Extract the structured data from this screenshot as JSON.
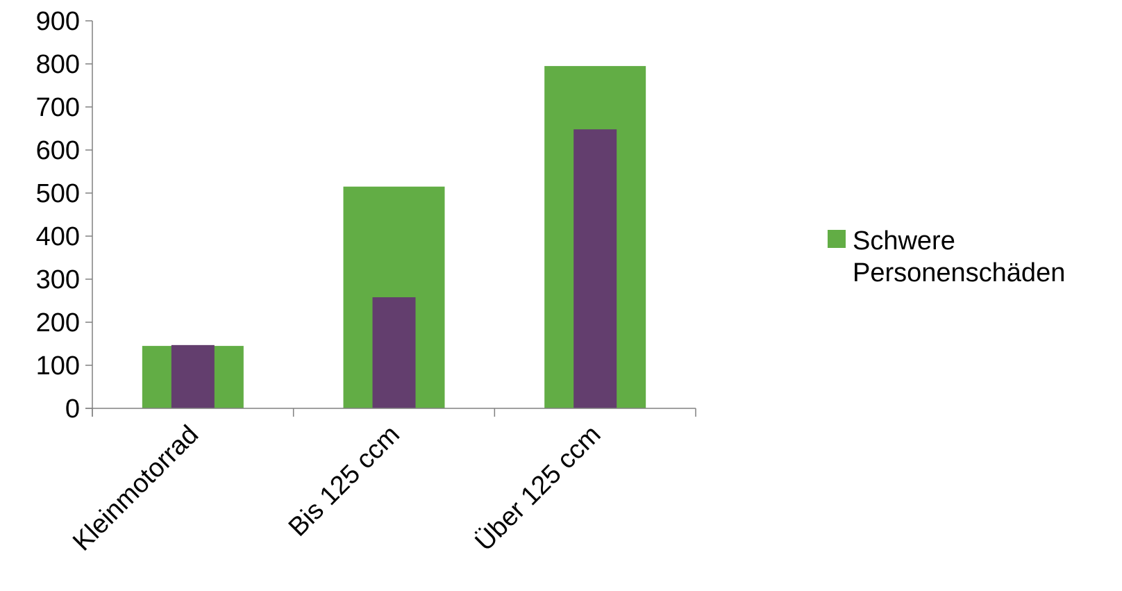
{
  "chart_data": {
    "type": "bar",
    "title": "",
    "xlabel": "",
    "ylabel": "",
    "ylim": [
      0,
      900
    ],
    "yticks": [
      0,
      100,
      200,
      300,
      400,
      500,
      600,
      700,
      800,
      900
    ],
    "ytick_labels": [
      "0",
      "100",
      "200",
      "300",
      "400",
      "500",
      "600",
      "700",
      "800",
      "900"
    ],
    "categories": [
      "Kleinmotorrad",
      "Bis 125 ccm",
      "Über 125 ccm"
    ],
    "series": [
      {
        "name": "Schwere Personenschäden",
        "color": "#62ad45",
        "values": [
          145,
          515,
          795
        ]
      },
      {
        "color": "#633e6e",
        "values": [
          147,
          258,
          648
        ]
      }
    ],
    "grid": false,
    "legend_position": "right",
    "legend": [
      "Schwere Personenschäden"
    ]
  }
}
